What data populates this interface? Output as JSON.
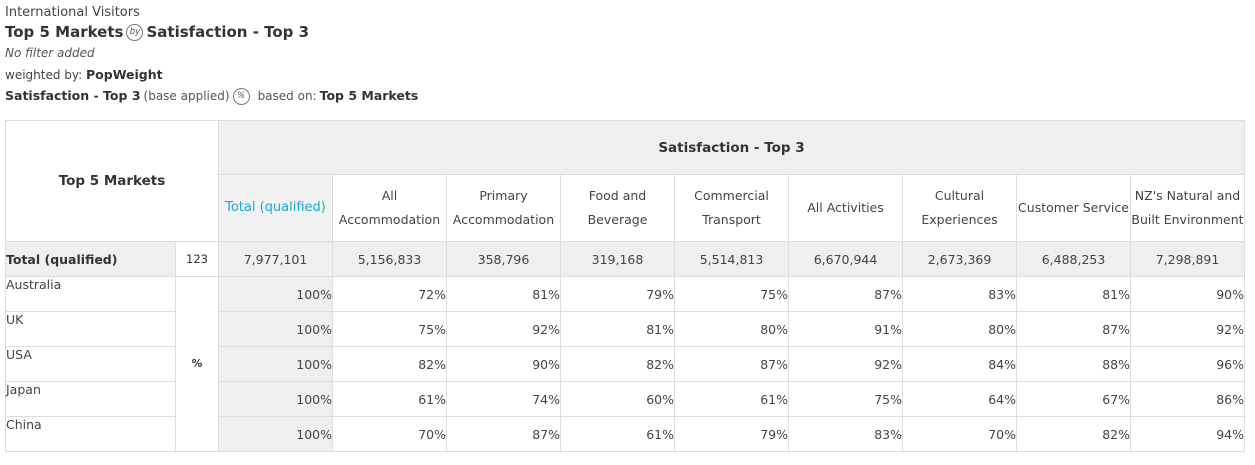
{
  "header": {
    "dataset": "International Visitors",
    "row_var": "Top 5 Markets",
    "by_icon": "by",
    "col_var": "Satisfaction - Top 3",
    "filter": "No filter added",
    "weighted_label": "weighted by:",
    "weight": "PopWeight",
    "base_var": "Satisfaction - Top 3",
    "base_note": "(base applied)",
    "pct_icon": "%",
    "based_on_label": "based on:",
    "based_on": "Top 5 Markets"
  },
  "table": {
    "row_title": "Top 5 Markets",
    "col_title": "Satisfaction - Top 3",
    "columns": [
      "Total (qualified)",
      "All Accommodation",
      "Primary Accommodation",
      "Food and Beverage",
      "Commercial Transport",
      "All Activities",
      "Cultural Experiences",
      "Customer Service",
      "NZ's Natural and Built Environment"
    ],
    "total_row": {
      "label": "Total (qualified)",
      "base": "123",
      "values": [
        "7,977,101",
        "5,156,833",
        "358,796",
        "319,168",
        "5,514,813",
        "6,670,944",
        "2,673,369",
        "6,488,253",
        "7,298,891"
      ]
    },
    "pct_label": "%",
    "rows": [
      {
        "label": "Australia",
        "values": [
          "100%",
          "72%",
          "81%",
          "79%",
          "75%",
          "87%",
          "83%",
          "81%",
          "90%"
        ]
      },
      {
        "label": "UK",
        "values": [
          "100%",
          "75%",
          "92%",
          "81%",
          "80%",
          "91%",
          "80%",
          "87%",
          "92%"
        ]
      },
      {
        "label": "USA",
        "values": [
          "100%",
          "82%",
          "90%",
          "82%",
          "87%",
          "92%",
          "84%",
          "88%",
          "96%"
        ]
      },
      {
        "label": "Japan",
        "values": [
          "100%",
          "61%",
          "74%",
          "60%",
          "61%",
          "75%",
          "64%",
          "67%",
          "86%"
        ]
      },
      {
        "label": "China",
        "values": [
          "100%",
          "70%",
          "87%",
          "61%",
          "79%",
          "83%",
          "70%",
          "82%",
          "94%"
        ]
      }
    ]
  }
}
